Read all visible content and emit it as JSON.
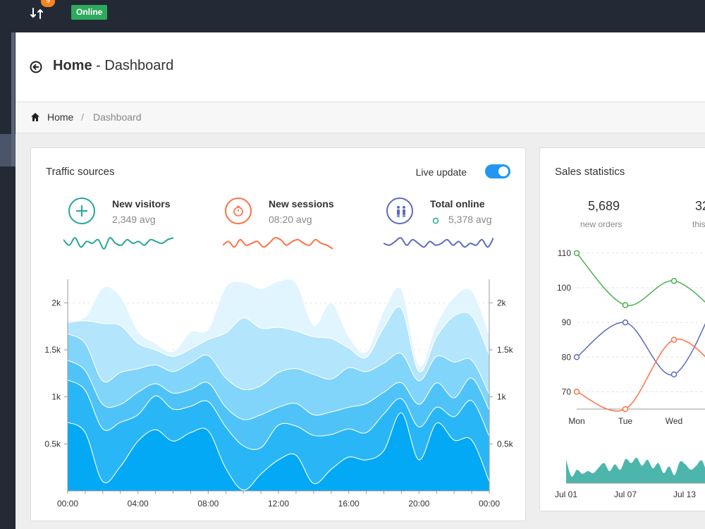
{
  "topbar": {
    "notification_count": "9",
    "status_label": "Online",
    "icons": [
      "sync-icon"
    ]
  },
  "page_header": {
    "title_bold": "Home",
    "title_rest": " - Dashboard",
    "back_icon": "back-arrow-circle-icon"
  },
  "breadcrumb": {
    "home": "Home",
    "separator": "/",
    "current": "Dashboard"
  },
  "traffic": {
    "title": "Traffic sources",
    "live_label": "Live update",
    "live_enabled": true,
    "stats": [
      {
        "label": "New visitors",
        "value": "2,349 avg",
        "color": "#26a69a",
        "icon": "plus-icon"
      },
      {
        "label": "New sessions",
        "value": "08:20 avg",
        "color": "#ff7043",
        "icon": "clock-icon"
      },
      {
        "label": "Total online",
        "value": "5,378 avg",
        "color": "#5c6bc0",
        "icon": "users-icon"
      }
    ]
  },
  "sales": {
    "title": "Sales statistics",
    "stats": [
      {
        "value": "5,689",
        "label": "new orders"
      },
      {
        "value": "32",
        "label": "this"
      }
    ]
  },
  "chart_data": [
    {
      "type": "area",
      "stacked": true,
      "x_ticks": [
        "00:00",
        "04:00",
        "08:00",
        "12:00",
        "16:00",
        "20:00",
        "00:00"
      ],
      "y_ticks_left": [
        "0.5k",
        "1k",
        "1.5k",
        "2k"
      ],
      "y_ticks_right": [
        "0.5k",
        "1k",
        "1.5k",
        "2k"
      ],
      "ylim": [
        0,
        2250
      ],
      "grid": true,
      "colors": [
        "#03a9f4",
        "#29b6f6",
        "#4fc3f7",
        "#81d4fa",
        "#b3e5fc",
        "#e1f5fe"
      ],
      "x": [
        0,
        1,
        2,
        3,
        4,
        5,
        6,
        7,
        8,
        9,
        10,
        11,
        12,
        13,
        14,
        15,
        16,
        17,
        18,
        19,
        20,
        21,
        22,
        23,
        24
      ],
      "series": [
        {
          "values": [
            730,
            620,
            100,
            260,
            530,
            650,
            530,
            620,
            640,
            240,
            10,
            180,
            330,
            380,
            80,
            230,
            360,
            330,
            430,
            830,
            330,
            720,
            540,
            540,
            100
          ]
        },
        {
          "values": [
            450,
            450,
            560,
            470,
            280,
            360,
            340,
            280,
            310,
            440,
            470,
            280,
            370,
            310,
            510,
            370,
            300,
            290,
            390,
            150,
            350,
            170,
            250,
            420,
            480
          ]
        },
        {
          "values": [
            210,
            210,
            260,
            190,
            240,
            130,
            170,
            180,
            200,
            210,
            280,
            350,
            190,
            240,
            220,
            240,
            230,
            310,
            230,
            170,
            240,
            260,
            200,
            240,
            280
          ]
        },
        {
          "values": [
            280,
            290,
            250,
            340,
            250,
            200,
            230,
            280,
            290,
            310,
            320,
            310,
            370,
            370,
            430,
            350,
            420,
            340,
            310,
            310,
            250,
            280,
            380,
            190,
            170
          ]
        },
        {
          "values": [
            120,
            240,
            610,
            500,
            270,
            160,
            160,
            150,
            170,
            480,
            760,
            610,
            480,
            400,
            400,
            430,
            210,
            150,
            380,
            480,
            100,
            210,
            490,
            470,
            420
          ]
        },
        {
          "values": [
            20,
            40,
            380,
            310,
            130,
            70,
            50,
            180,
            110,
            490,
            380,
            420,
            490,
            510,
            120,
            380,
            120,
            60,
            180,
            200,
            60,
            140,
            200,
            270,
            210
          ]
        }
      ]
    },
    {
      "type": "line",
      "categories": [
        "Mon",
        "Tue",
        "Wed"
      ],
      "y_ticks": [
        "70",
        "80",
        "90",
        "100",
        "110"
      ],
      "ylim": [
        65,
        111
      ],
      "grid": true,
      "series": [
        {
          "color": "#4caf50",
          "values": [
            110,
            95,
            102
          ]
        },
        {
          "color": "#5c6bc0",
          "values": [
            80,
            90,
            75
          ]
        },
        {
          "color": "#ff7043",
          "values": [
            70,
            65,
            85
          ]
        }
      ],
      "extra_point": {
        "green": 91,
        "blue": 101,
        "orange": 75
      }
    },
    {
      "type": "area",
      "x_ticks": [
        "Jul 01",
        "Jul 07",
        "Jul 13"
      ],
      "color": "#4db6ac",
      "values": [
        35,
        10,
        20,
        14,
        18,
        15,
        23,
        30,
        18,
        28,
        20,
        36,
        30,
        38,
        26,
        35,
        22,
        30,
        15,
        25,
        12,
        32,
        28,
        20,
        26,
        34,
        18,
        24,
        15,
        22
      ]
    }
  ]
}
